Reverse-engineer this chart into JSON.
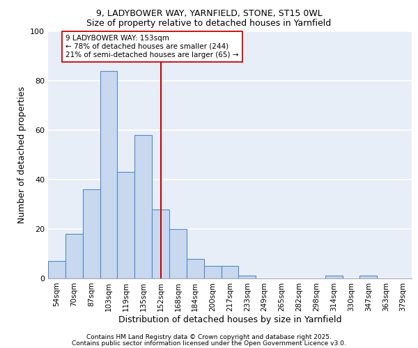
{
  "title_line1": "9, LADYBOWER WAY, YARNFIELD, STONE, ST15 0WL",
  "title_line2": "Size of property relative to detached houses in Yarnfield",
  "xlabel": "Distribution of detached houses by size in Yarnfield",
  "ylabel": "Number of detached properties",
  "bar_labels": [
    "54sqm",
    "70sqm",
    "87sqm",
    "103sqm",
    "119sqm",
    "135sqm",
    "152sqm",
    "168sqm",
    "184sqm",
    "200sqm",
    "217sqm",
    "233sqm",
    "249sqm",
    "265sqm",
    "282sqm",
    "298sqm",
    "314sqm",
    "330sqm",
    "347sqm",
    "363sqm",
    "379sqm"
  ],
  "bar_heights": [
    7,
    18,
    36,
    84,
    43,
    58,
    28,
    20,
    8,
    5,
    5,
    1,
    0,
    0,
    0,
    0,
    1,
    0,
    1,
    0,
    0
  ],
  "bar_color": "#c8d8ee",
  "bar_edge_color": "#5588cc",
  "annotation_line_x_label": "152sqm",
  "annotation_line_color": "#cc0000",
  "annotation_box_text": "9 LADYBOWER WAY: 153sqm\n← 78% of detached houses are smaller (244)\n21% of semi-detached houses are larger (65) →",
  "ylim": [
    0,
    100
  ],
  "background_color": "#e8eef8",
  "grid_color": "#ffffff",
  "footer_line1": "Contains HM Land Registry data © Crown copyright and database right 2025.",
  "footer_line2": "Contains public sector information licensed under the Open Government Licence v3.0."
}
